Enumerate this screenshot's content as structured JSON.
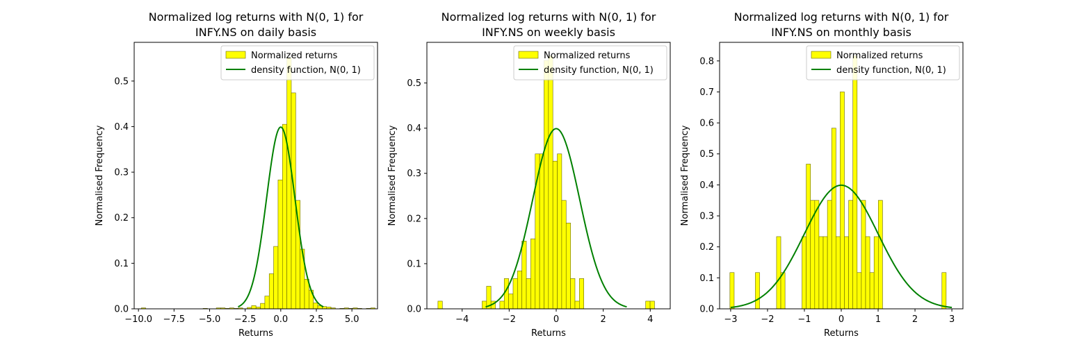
{
  "chart_data": [
    {
      "type": "histogram",
      "title_line1": "Normalized log returns with N(0, 1) for",
      "title_line2": "INFY.NS on daily basis",
      "xlabel": "Returns",
      "ylabel": "Normalised Frequency",
      "xlim": [
        -10.3,
        6.8
      ],
      "ylim": [
        0,
        0.585
      ],
      "xticks": [
        -10.0,
        -7.5,
        -5.0,
        -2.5,
        0.0,
        2.5,
        5.0
      ],
      "xtick_labels": [
        "−10.0",
        "−7.5",
        "−5.0",
        "−2.5",
        "0.0",
        "2.5",
        "5.0"
      ],
      "yticks": [
        0.0,
        0.1,
        0.2,
        0.3,
        0.4,
        0.5
      ],
      "ytick_labels": [
        "0.0",
        "0.1",
        "0.2",
        "0.3",
        "0.4",
        "0.5"
      ],
      "bin_start": -9.8,
      "bin_width": 0.31,
      "bar_values": [
        0.002,
        0,
        0,
        0,
        0,
        0,
        0,
        0,
        0,
        0,
        0,
        0,
        0,
        0,
        0.001,
        0,
        0,
        0.002,
        0.002,
        0.001,
        0.002,
        0.001,
        0.002,
        0,
        0.003,
        0.007,
        0.004,
        0.012,
        0.028,
        0.077,
        0.137,
        0.283,
        0.405,
        0.551,
        0.474,
        0.238,
        0.131,
        0.065,
        0.041,
        0.013,
        0.007,
        0.005,
        0.004,
        0.002,
        0,
        0.001,
        0.002,
        0.001,
        0.002,
        0.001,
        0,
        0.001,
        0.002
      ],
      "legend": [
        "Normalized returns",
        "density function, N(0, 1)"
      ],
      "legend_position": "top-right",
      "curve": "normal pdf, mean 0, sd 1",
      "curve_range": [
        -3,
        3
      ]
    },
    {
      "type": "histogram",
      "title_line1": "Normalized log returns with N(0, 1) for",
      "title_line2": "INFY.NS on weekly basis",
      "xlabel": "Returns",
      "ylabel": "Normalised Frequency",
      "xlim": [
        -5.5,
        4.85
      ],
      "ylim": [
        0,
        0.59
      ],
      "xticks": [
        -4,
        -2,
        0,
        2,
        4
      ],
      "xtick_labels": [
        "−4",
        "−2",
        "0",
        "2",
        "4"
      ],
      "yticks": [
        0.0,
        0.1,
        0.2,
        0.3,
        0.4,
        0.5
      ],
      "ytick_labels": [
        "0.0",
        "0.1",
        "0.2",
        "0.3",
        "0.4",
        "0.5"
      ],
      "bin_start": -5.03,
      "bin_width": 0.188,
      "bar_values": [
        0.017,
        0,
        0,
        0,
        0,
        0,
        0,
        0,
        0,
        0,
        0.017,
        0.05,
        0.017,
        0,
        0.017,
        0.067,
        0.033,
        0.067,
        0.084,
        0.15,
        0.067,
        0.155,
        0.343,
        0.343,
        0.55,
        0.56,
        0.327,
        0.343,
        0.24,
        0.19,
        0.067,
        0.017,
        0.067,
        0,
        0,
        0,
        0,
        0,
        0,
        0,
        0,
        0,
        0,
        0,
        0,
        0,
        0,
        0.017,
        0.017
      ],
      "legend": [
        "Normalized returns",
        "density function, N(0, 1)"
      ],
      "legend_position": "top-right",
      "curve": "normal pdf, mean 0, sd 1",
      "curve_range": [
        -3,
        3
      ]
    },
    {
      "type": "histogram",
      "title_line1": "Normalized log returns with N(0, 1) for",
      "title_line2": "INFY.NS on monthly basis",
      "xlabel": "Returns",
      "ylabel": "Normalised Frequency",
      "xlim": [
        -3.3,
        3.3
      ],
      "ylim": [
        0,
        0.86
      ],
      "xticks": [
        -3,
        -2,
        -1,
        0,
        1,
        2,
        3
      ],
      "xtick_labels": [
        "−3",
        "−2",
        "−1",
        "0",
        "1",
        "2",
        "3"
      ],
      "yticks": [
        0.0,
        0.1,
        0.2,
        0.3,
        0.4,
        0.5,
        0.6,
        0.7,
        0.8
      ],
      "ytick_labels": [
        "0.0",
        "0.1",
        "0.2",
        "0.3",
        "0.4",
        "0.5",
        "0.6",
        "0.7",
        "0.8"
      ],
      "bin_start": -3.02,
      "bin_width": 0.115,
      "bar_values": [
        0.117,
        0,
        0,
        0,
        0,
        0,
        0.117,
        0,
        0,
        0,
        0,
        0.233,
        0.117,
        0,
        0,
        0,
        0,
        0.233,
        0.467,
        0.35,
        0.35,
        0.233,
        0.233,
        0.35,
        0.583,
        0.233,
        0.7,
        0.233,
        0.35,
        0.817,
        0.117,
        0.35,
        0.233,
        0.117,
        0.233,
        0.35,
        0,
        0,
        0,
        0,
        0,
        0,
        0,
        0,
        0,
        0,
        0,
        0,
        0,
        0,
        0.117
      ],
      "legend": [
        "Normalized returns",
        "density function, N(0, 1)"
      ],
      "legend_position": "top-right",
      "curve": "normal pdf, mean 0, sd 1",
      "curve_range": [
        -3,
        3
      ]
    }
  ],
  "colors": {
    "bar_fill": "#ffff00",
    "bar_edge": "#666600",
    "curve": "#008000",
    "axis": "#000000",
    "legend_border": "#cccccc"
  }
}
